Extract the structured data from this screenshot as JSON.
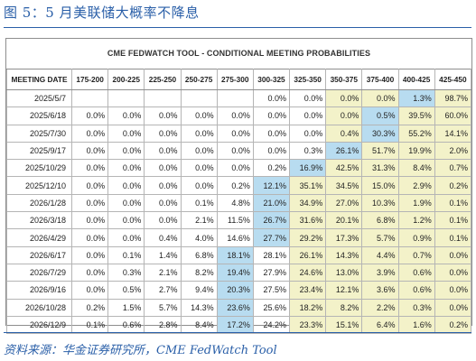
{
  "caption": "图 5：5 月美联储大概率不降息",
  "table_title": "CME FEDWATCH TOOL - CONDITIONAL MEETING PROBABILITIES",
  "headers": [
    "MEETING DATE",
    "175-200",
    "200-225",
    "225-250",
    "250-275",
    "275-300",
    "300-325",
    "325-350",
    "350-375",
    "375-400",
    "400-425",
    "425-450"
  ],
  "rows": [
    {
      "date": "2025/5/7",
      "cells": [
        "",
        "",
        "",
        "",
        "",
        "0.0%",
        "0.0%",
        "0.0%",
        "0.0%",
        "1.3%",
        "98.7%"
      ]
    },
    {
      "date": "2025/6/18",
      "cells": [
        "0.0%",
        "0.0%",
        "0.0%",
        "0.0%",
        "0.0%",
        "0.0%",
        "0.0%",
        "0.0%",
        "0.5%",
        "39.5%",
        "60.0%"
      ]
    },
    {
      "date": "2025/7/30",
      "cells": [
        "0.0%",
        "0.0%",
        "0.0%",
        "0.0%",
        "0.0%",
        "0.0%",
        "0.0%",
        "0.4%",
        "30.3%",
        "55.2%",
        "14.1%"
      ]
    },
    {
      "date": "2025/9/17",
      "cells": [
        "0.0%",
        "0.0%",
        "0.0%",
        "0.0%",
        "0.0%",
        "0.0%",
        "0.3%",
        "26.1%",
        "51.7%",
        "19.9%",
        "2.0%"
      ]
    },
    {
      "date": "2025/10/29",
      "cells": [
        "0.0%",
        "0.0%",
        "0.0%",
        "0.0%",
        "0.0%",
        "0.2%",
        "16.9%",
        "42.5%",
        "31.3%",
        "8.4%",
        "0.7%"
      ]
    },
    {
      "date": "2025/12/10",
      "cells": [
        "0.0%",
        "0.0%",
        "0.0%",
        "0.0%",
        "0.2%",
        "12.1%",
        "35.1%",
        "34.5%",
        "15.0%",
        "2.9%",
        "0.2%"
      ]
    },
    {
      "date": "2026/1/28",
      "cells": [
        "0.0%",
        "0.0%",
        "0.0%",
        "0.1%",
        "4.8%",
        "21.0%",
        "34.9%",
        "27.0%",
        "10.3%",
        "1.9%",
        "0.1%"
      ]
    },
    {
      "date": "2026/3/18",
      "cells": [
        "0.0%",
        "0.0%",
        "0.0%",
        "2.1%",
        "11.5%",
        "26.7%",
        "31.6%",
        "20.1%",
        "6.8%",
        "1.2%",
        "0.1%"
      ]
    },
    {
      "date": "2026/4/29",
      "cells": [
        "0.0%",
        "0.0%",
        "0.4%",
        "4.0%",
        "14.6%",
        "27.7%",
        "29.2%",
        "17.3%",
        "5.7%",
        "0.9%",
        "0.1%"
      ]
    },
    {
      "date": "2026/6/17",
      "cells": [
        "0.0%",
        "0.1%",
        "1.4%",
        "6.8%",
        "18.1%",
        "28.1%",
        "26.1%",
        "14.3%",
        "4.4%",
        "0.7%",
        "0.0%"
      ]
    },
    {
      "date": "2026/7/29",
      "cells": [
        "0.0%",
        "0.3%",
        "2.1%",
        "8.2%",
        "19.4%",
        "27.9%",
        "24.6%",
        "13.0%",
        "3.9%",
        "0.6%",
        "0.0%"
      ]
    },
    {
      "date": "2026/9/16",
      "cells": [
        "0.0%",
        "0.5%",
        "2.7%",
        "9.4%",
        "20.3%",
        "27.5%",
        "23.4%",
        "12.1%",
        "3.6%",
        "0.6%",
        "0.0%"
      ]
    },
    {
      "date": "2026/10/28",
      "cells": [
        "0.2%",
        "1.5%",
        "5.7%",
        "14.3%",
        "23.6%",
        "25.6%",
        "18.2%",
        "8.2%",
        "2.2%",
        "0.3%",
        "0.0%"
      ]
    },
    {
      "date": "2026/12/9",
      "cells": [
        "0.1%",
        "0.6%",
        "2.8%",
        "8.4%",
        "17.2%",
        "24.2%",
        "23.3%",
        "15.1%",
        "6.4%",
        "1.6%",
        "0.2%"
      ]
    }
  ],
  "highlight_col": [
    10,
    9,
    9,
    8,
    7,
    6,
    6,
    6,
    6,
    5,
    5,
    5,
    5,
    5
  ],
  "colors": {
    "highlight": "#b8dcf0",
    "tint": "#f3f2c9",
    "accent": "#2a5fa8"
  },
  "source": "资料来源：华金证券研究所，CME FedWatch Tool"
}
